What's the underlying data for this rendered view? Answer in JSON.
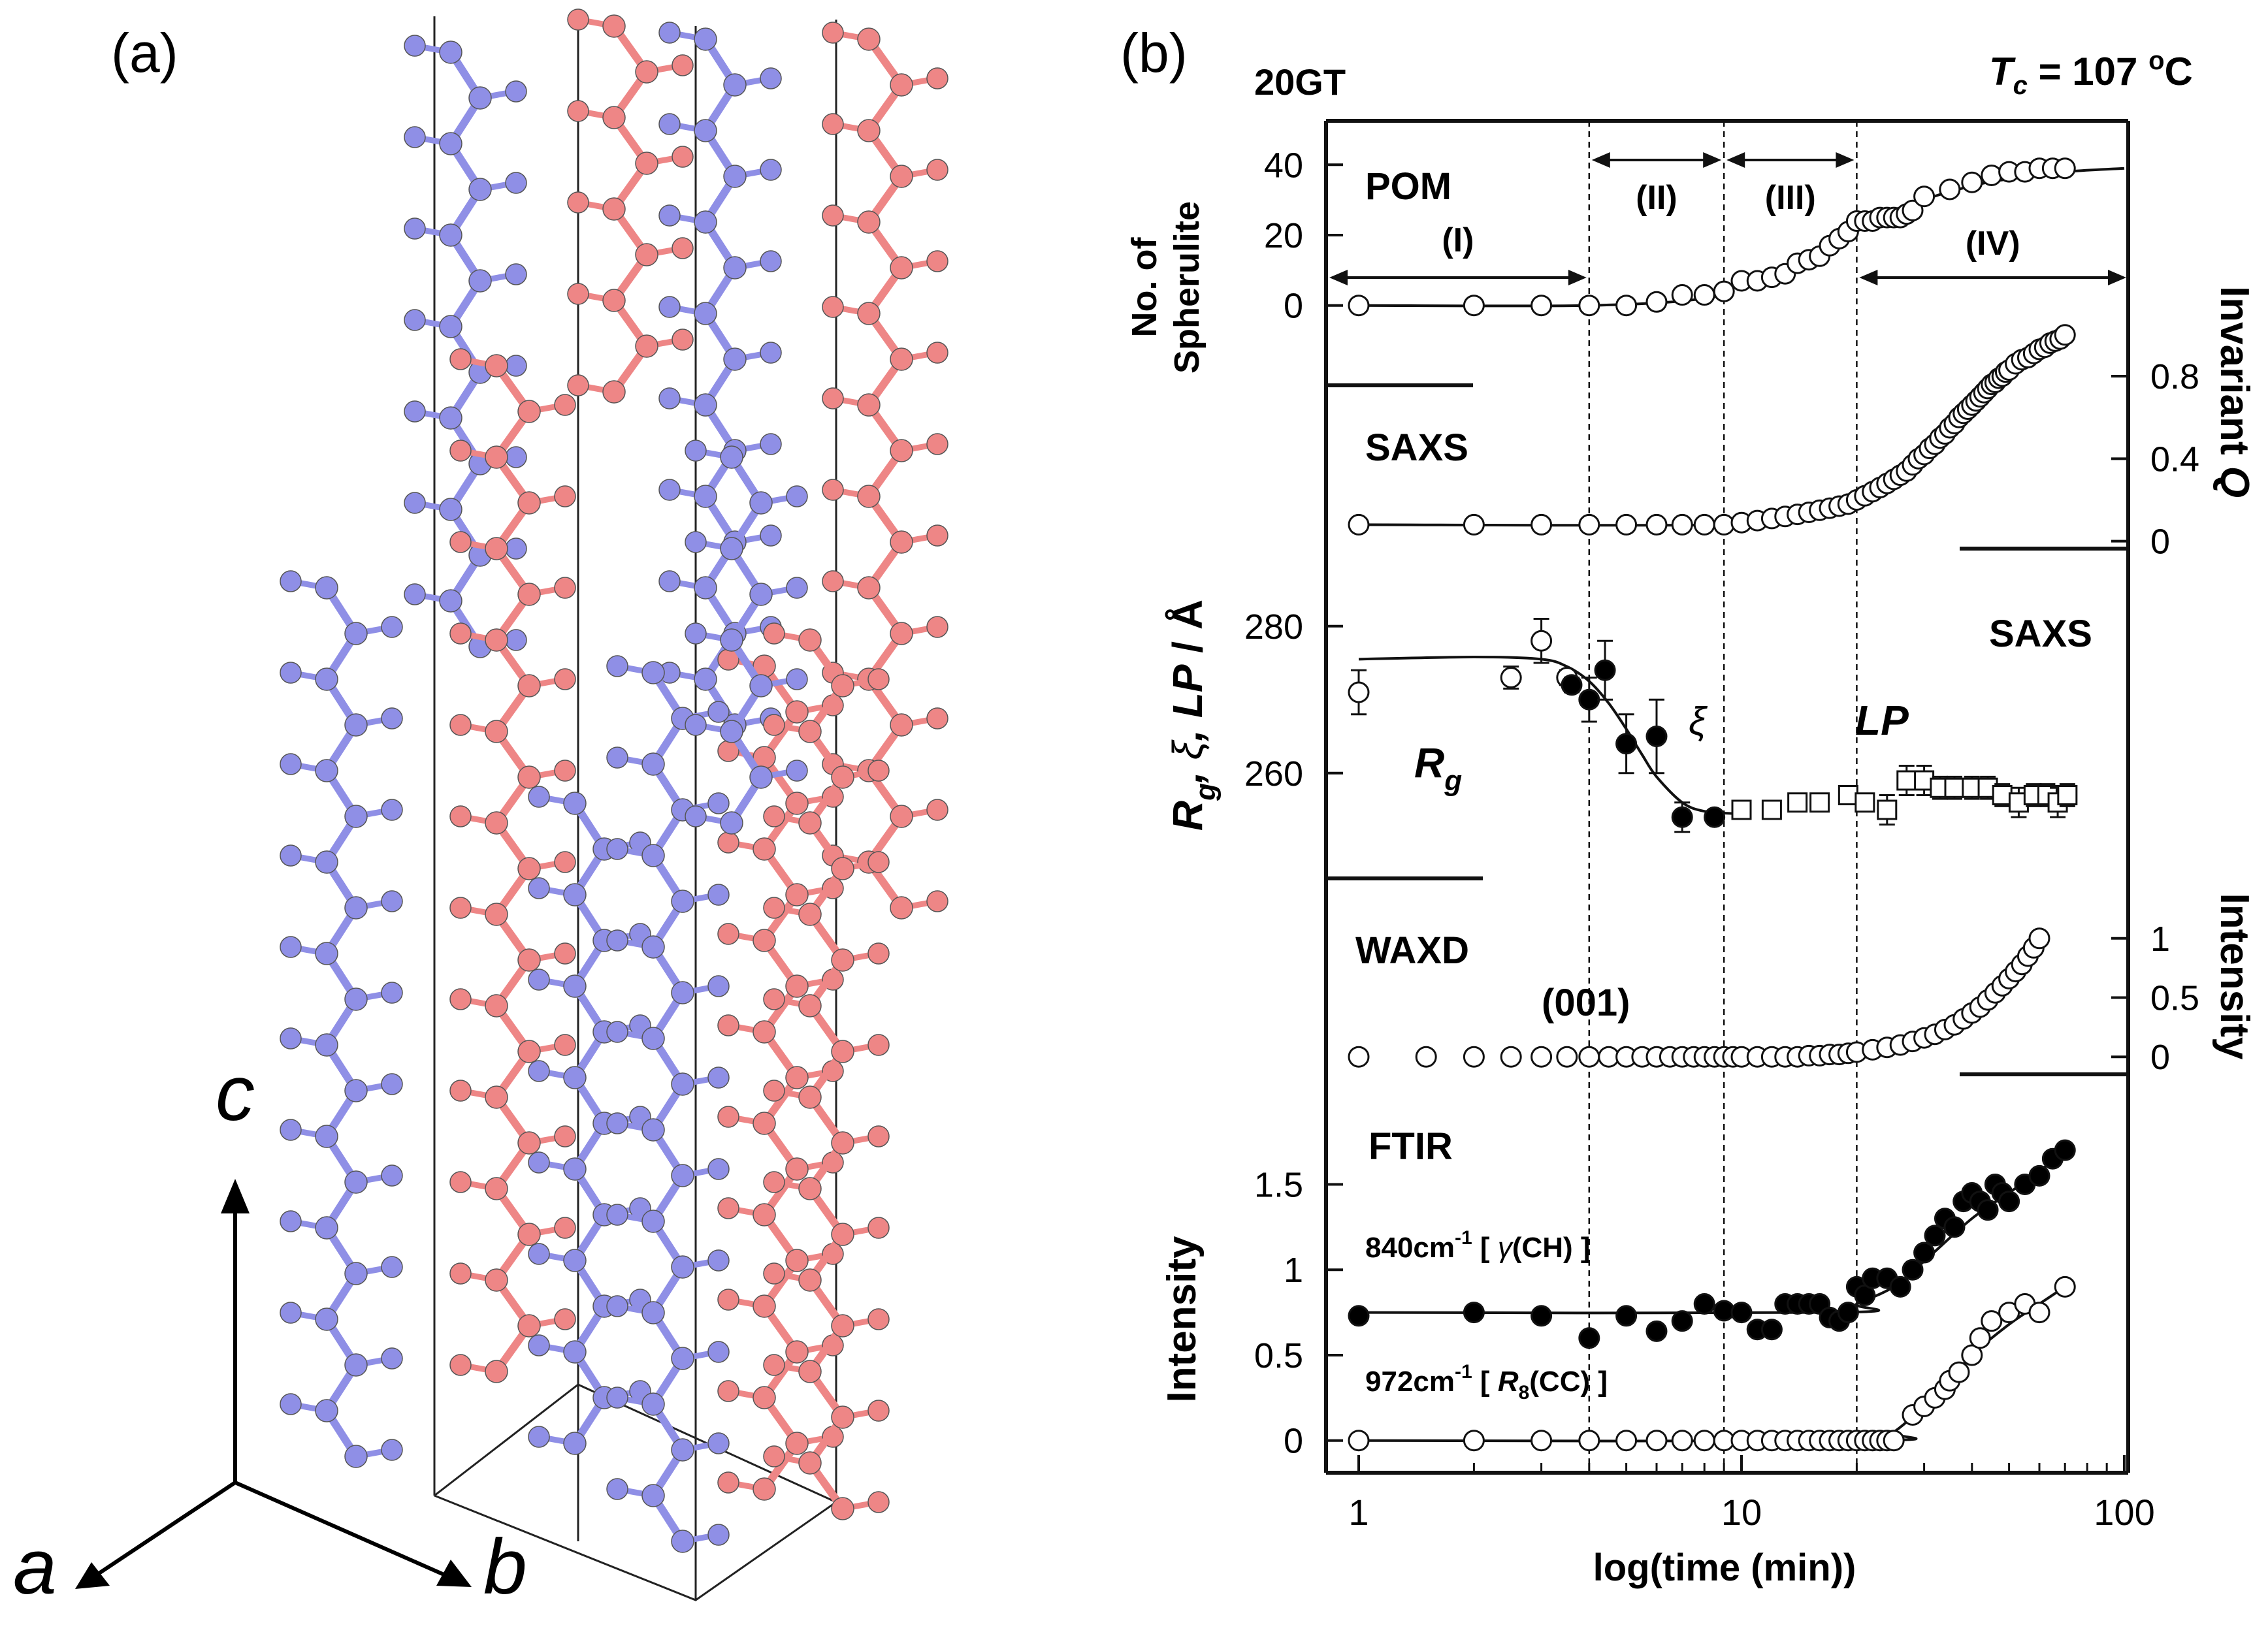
{
  "panel_a": {
    "label": "(a)",
    "axes": {
      "a": "a",
      "b": "b",
      "c": "c"
    },
    "colors": {
      "chain_blue": "#8f8fe6",
      "chain_red": "#ee8686",
      "frame": "#222222"
    }
  },
  "panel_b": {
    "label": "(b)",
    "sample": "20GT",
    "tc": {
      "T": "T",
      "sub": "c",
      "value": " = 107 ",
      "deg": "o",
      "unit": "C"
    },
    "x_axis": {
      "label": "log(time (min))",
      "ticks": [
        "1",
        "10",
        "100"
      ]
    },
    "phases": [
      {
        "label": "(I)",
        "from": 1,
        "to": 4
      },
      {
        "label": "(II)",
        "from": 4,
        "to": 9
      },
      {
        "label": "(III)",
        "from": 9,
        "to": 20
      },
      {
        "label": "(IV)",
        "from": 20,
        "to": 100
      }
    ],
    "vlines": [
      4,
      9,
      20
    ],
    "colors": {
      "ink": "#111111",
      "open_fill": "#ffffff",
      "filled": "#000000"
    }
  },
  "chart_data": [
    {
      "type": "scatter",
      "id": "pom",
      "title": "POM",
      "ylabel_lines": [
        "No. of",
        "Spherulite"
      ],
      "ytick_labels": [
        "0",
        "20",
        "40"
      ],
      "ylim": [
        -6,
        46
      ],
      "x_scale": "log",
      "series": [
        {
          "name": "spherulite count",
          "marker": "open-circle",
          "x": [
            1,
            2,
            3,
            4,
            5,
            6,
            7,
            8,
            9,
            10,
            11,
            12,
            13,
            14,
            15,
            16,
            17,
            18,
            19,
            20,
            21,
            22,
            23,
            24,
            25,
            26,
            27,
            28,
            30,
            35,
            40,
            45,
            50,
            55,
            60,
            65,
            70
          ],
          "y": [
            0,
            0,
            0,
            0,
            0,
            1,
            3,
            3,
            4,
            7,
            7,
            8,
            9,
            12,
            13,
            14,
            17,
            19,
            21,
            24,
            24,
            24,
            25,
            25,
            25,
            25,
            26,
            27,
            31,
            33,
            35,
            37,
            38,
            38,
            39,
            39,
            39
          ]
        }
      ],
      "curve": {
        "x": [
          1,
          4,
          8,
          10,
          14,
          18,
          22,
          26,
          30,
          40,
          50,
          70,
          100
        ],
        "y": [
          0,
          0,
          2,
          6,
          11,
          19,
          23,
          26,
          30,
          34,
          36,
          38,
          39
        ]
      }
    },
    {
      "type": "scatter",
      "id": "saxs_invariant",
      "title": "SAXS",
      "ylabel_right": [
        "Invariant ",
        "Q"
      ],
      "ytick_labels": [
        "0",
        "0.4",
        "0.8"
      ],
      "ylim": [
        -0.02,
        1.05
      ],
      "x_scale": "log",
      "series": [
        {
          "name": "invariant Q",
          "marker": "open-circle",
          "x": [
            1,
            2,
            3,
            4,
            5,
            6,
            7,
            8,
            9,
            10,
            11,
            12,
            13,
            14,
            15,
            16,
            17,
            18,
            19,
            20,
            21,
            22,
            23,
            24,
            25,
            26,
            27,
            28,
            29,
            30,
            31,
            32,
            33,
            34,
            35,
            36,
            37,
            38,
            39,
            40,
            41,
            42,
            43,
            44,
            45,
            46,
            47,
            48,
            49,
            50,
            52,
            54,
            56,
            58,
            60,
            62,
            64,
            66,
            68,
            70
          ],
          "y": [
            0.08,
            0.08,
            0.08,
            0.08,
            0.08,
            0.08,
            0.08,
            0.08,
            0.08,
            0.09,
            0.1,
            0.11,
            0.12,
            0.13,
            0.14,
            0.15,
            0.16,
            0.17,
            0.18,
            0.2,
            0.22,
            0.24,
            0.26,
            0.28,
            0.3,
            0.32,
            0.34,
            0.37,
            0.4,
            0.42,
            0.45,
            0.47,
            0.5,
            0.52,
            0.55,
            0.57,
            0.6,
            0.62,
            0.64,
            0.66,
            0.68,
            0.7,
            0.72,
            0.74,
            0.76,
            0.77,
            0.79,
            0.8,
            0.82,
            0.83,
            0.86,
            0.88,
            0.89,
            0.91,
            0.93,
            0.94,
            0.96,
            0.97,
            0.98,
            1.0
          ]
        }
      ],
      "curve": {
        "x": [
          1,
          10,
          15,
          20,
          25,
          30,
          40,
          50,
          60,
          70
        ],
        "y": [
          0.08,
          0.08,
          0.12,
          0.18,
          0.27,
          0.38,
          0.62,
          0.82,
          0.93,
          1.0
        ]
      }
    },
    {
      "type": "scatter",
      "id": "saxs_length",
      "title": "SAXS",
      "ylabel": {
        "Rg": "R",
        "g": "g",
        "xi": "ξ",
        "LP": "LP",
        "unit": " / Å"
      },
      "series_labels": {
        "Rg": {
          "main": "R",
          "sub": "g"
        },
        "xi": "ξ",
        "LP": "LP"
      },
      "ytick_labels": [
        "260",
        "280"
      ],
      "ylim": [
        247,
        287
      ],
      "x_scale": "log",
      "series": [
        {
          "name": "Rg",
          "marker": "open-circle",
          "points": [
            {
              "x": 1,
              "y": 271,
              "err": 3
            },
            {
              "x": 2.5,
              "y": 273,
              "err": 1.5
            },
            {
              "x": 3,
              "y": 278,
              "err": 3
            },
            {
              "x": 3.5,
              "y": 273,
              "err": 1
            }
          ]
        },
        {
          "name": "ξ",
          "marker": "filled-circle",
          "points": [
            {
              "x": 3.6,
              "y": 272,
              "err": 1
            },
            {
              "x": 4,
              "y": 270,
              "err": 3
            },
            {
              "x": 4.4,
              "y": 274,
              "err": 4
            },
            {
              "x": 5,
              "y": 264,
              "err": 4
            },
            {
              "x": 6,
              "y": 265,
              "err": 5
            },
            {
              "x": 7,
              "y": 254,
              "err": 2
            },
            {
              "x": 8.5,
              "y": 254,
              "err": 0.8
            }
          ]
        },
        {
          "name": "LP",
          "marker": "open-square",
          "points": [
            {
              "x": 10,
              "y": 255,
              "err": 0.8
            },
            {
              "x": 12,
              "y": 255,
              "err": 0.8
            },
            {
              "x": 14,
              "y": 256,
              "err": 0.8
            },
            {
              "x": 16,
              "y": 256,
              "err": 1
            },
            {
              "x": 19,
              "y": 257,
              "err": 1
            },
            {
              "x": 21,
              "y": 256,
              "err": 1
            },
            {
              "x": 24,
              "y": 255,
              "err": 2
            },
            {
              "x": 27,
              "y": 259,
              "err": 2
            },
            {
              "x": 30,
              "y": 259,
              "err": 2
            },
            {
              "x": 33,
              "y": 258,
              "err": 1.5
            },
            {
              "x": 36,
              "y": 258,
              "err": 1.5
            },
            {
              "x": 40,
              "y": 258,
              "err": 1.5
            },
            {
              "x": 44,
              "y": 258,
              "err": 1.5
            },
            {
              "x": 48,
              "y": 257,
              "err": 1.5
            },
            {
              "x": 53,
              "y": 256,
              "err": 2
            },
            {
              "x": 58,
              "y": 257,
              "err": 1.5
            },
            {
              "x": 63,
              "y": 257,
              "err": 1.5
            },
            {
              "x": 67,
              "y": 256,
              "err": 2
            },
            {
              "x": 71,
              "y": 257,
              "err": 1.5
            }
          ]
        }
      ],
      "curve": {
        "x": [
          1,
          2,
          3,
          3.5,
          4,
          4.5,
          5,
          5.5,
          6,
          7,
          8,
          9.5
        ],
        "y": [
          275.5,
          275.8,
          275.5,
          274.5,
          272.5,
          269.5,
          266,
          262.5,
          259.5,
          256,
          254.8,
          254.5
        ]
      }
    },
    {
      "type": "scatter",
      "id": "waxd",
      "title": "WAXD",
      "reflection": "(001)",
      "ylabel_right": "Intensity",
      "ytick_labels": [
        "0",
        "0.5",
        "1"
      ],
      "ylim": [
        -0.12,
        1.12
      ],
      "x_scale": "log",
      "series": [
        {
          "name": "(001) intensity",
          "marker": "open-circle",
          "x": [
            1,
            1.5,
            2,
            2.5,
            3,
            3.5,
            4,
            4.5,
            5,
            5.5,
            6,
            6.5,
            7,
            7.5,
            8,
            8.5,
            9,
            9.5,
            10,
            11,
            12,
            13,
            14,
            15,
            16,
            17,
            18,
            19,
            20,
            22,
            24,
            26,
            28,
            30,
            32,
            34,
            36,
            38,
            40,
            42,
            44,
            46,
            48,
            50,
            52,
            54,
            56,
            58,
            60
          ],
          "y": [
            0,
            0,
            0,
            0,
            0,
            0,
            0,
            0,
            0,
            0,
            0,
            0,
            0,
            0,
            0,
            0,
            0,
            0,
            0,
            0,
            0,
            0,
            0,
            0.01,
            0.01,
            0.02,
            0.02,
            0.03,
            0.04,
            0.06,
            0.08,
            0.1,
            0.13,
            0.16,
            0.19,
            0.23,
            0.27,
            0.32,
            0.37,
            0.42,
            0.48,
            0.54,
            0.6,
            0.66,
            0.72,
            0.78,
            0.85,
            0.92,
            1.0
          ]
        }
      ]
    },
    {
      "type": "scatter",
      "id": "ftir",
      "title": "FTIR",
      "ylabel": "Intensity",
      "ytick_labels": [
        "0",
        "0.5",
        "1",
        "1.5"
      ],
      "ylim": [
        -0.2,
        1.8
      ],
      "x_scale": "log",
      "band_labels": [
        {
          "wave": "840cm",
          "exp": "-1",
          "pre": " [ ",
          "sym": "γ",
          "rest": "(CH) ]"
        },
        {
          "wave": "972cm",
          "exp": "-1",
          "pre": " [ ",
          "sym": "R",
          "sub": "8",
          "rest": "(CC) ]"
        }
      ],
      "series": [
        {
          "name": "840 cm-1 γ(CH)",
          "marker": "filled-circle",
          "x": [
            1,
            2,
            3,
            4,
            5,
            6,
            7,
            8,
            9,
            10,
            11,
            12,
            13,
            14,
            15,
            16,
            17,
            18,
            19,
            20,
            21,
            22,
            24,
            26,
            28,
            30,
            32,
            34,
            36,
            38,
            40,
            42,
            44,
            46,
            48,
            50,
            55,
            60,
            65,
            70
          ],
          "y": [
            0.73,
            0.75,
            0.73,
            0.6,
            0.73,
            0.64,
            0.7,
            0.8,
            0.76,
            0.75,
            0.65,
            0.65,
            0.8,
            0.8,
            0.8,
            0.8,
            0.72,
            0.7,
            0.75,
            0.9,
            0.85,
            0.95,
            0.95,
            0.9,
            1.0,
            1.1,
            1.2,
            1.3,
            1.25,
            1.4,
            1.45,
            1.4,
            1.35,
            1.5,
            1.45,
            1.4,
            1.5,
            1.55,
            1.65,
            1.7
          ]
        },
        {
          "name": "972 cm-1 R8(CC)",
          "marker": "open-circle",
          "x": [
            1,
            2,
            3,
            4,
            5,
            6,
            7,
            8,
            9,
            10,
            11,
            12,
            13,
            14,
            15,
            16,
            17,
            18,
            19,
            20,
            21,
            22,
            23,
            24,
            25,
            28,
            30,
            32,
            34,
            35,
            37,
            40,
            42,
            45,
            50,
            55,
            60,
            70
          ],
          "y": [
            0,
            0,
            0,
            0,
            0,
            0,
            0,
            0,
            0,
            0,
            0,
            0,
            0,
            0,
            0,
            0,
            0,
            0,
            0,
            0,
            0,
            0,
            0,
            0,
            0,
            0.15,
            0.2,
            0.25,
            0.3,
            0.35,
            0.4,
            0.5,
            0.6,
            0.7,
            0.75,
            0.8,
            0.75,
            0.9
          ]
        }
      ],
      "curves": [
        {
          "x": [
            1,
            18,
            20,
            25,
            30,
            40,
            50,
            60,
            70
          ],
          "y": [
            0.75,
            0.75,
            0.8,
            0.9,
            1.05,
            1.3,
            1.45,
            1.58,
            1.68
          ]
        },
        {
          "x": [
            1,
            22,
            25,
            30,
            35,
            40,
            50,
            60,
            70
          ],
          "y": [
            0,
            0,
            0.05,
            0.2,
            0.35,
            0.5,
            0.68,
            0.8,
            0.9
          ]
        }
      ]
    }
  ]
}
